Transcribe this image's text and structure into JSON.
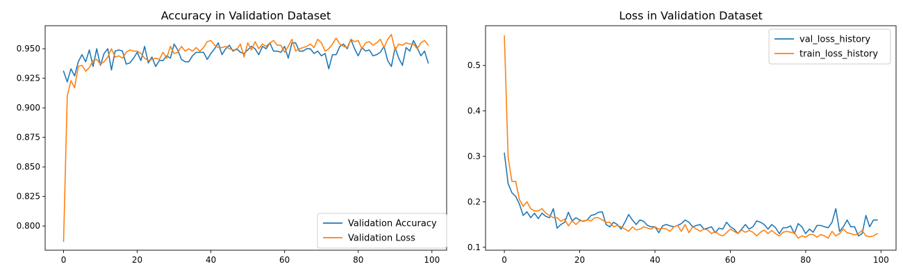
{
  "chart_data": [
    {
      "type": "line",
      "title": "Accuracy in Validation Dataset",
      "xlabel": "",
      "ylabel": "",
      "xlim": [
        -5,
        104
      ],
      "ylim": [
        0.7795,
        0.9695
      ],
      "xticks": [
        0,
        20,
        40,
        60,
        80,
        100
      ],
      "yticks": [
        0.8,
        0.825,
        0.85,
        0.875,
        0.9,
        0.925,
        0.95
      ],
      "ytick_labels": [
        "0.800",
        "0.825",
        "0.850",
        "0.875",
        "0.900",
        "0.925",
        "0.950"
      ],
      "legend_position": "lower-right",
      "grid": false,
      "x": [
        0,
        1,
        2,
        3,
        4,
        5,
        6,
        7,
        8,
        9,
        10,
        11,
        12,
        13,
        14,
        15,
        16,
        17,
        18,
        19,
        20,
        21,
        22,
        23,
        24,
        25,
        26,
        27,
        28,
        29,
        30,
        31,
        32,
        33,
        34,
        35,
        36,
        37,
        38,
        39,
        40,
        41,
        42,
        43,
        44,
        45,
        46,
        47,
        48,
        49,
        50,
        51,
        52,
        53,
        54,
        55,
        56,
        57,
        58,
        59,
        60,
        61,
        62,
        63,
        64,
        65,
        66,
        67,
        68,
        69,
        70,
        71,
        72,
        73,
        74,
        75,
        76,
        77,
        78,
        79,
        80,
        81,
        82,
        83,
        84,
        85,
        86,
        87,
        88,
        89,
        90,
        91,
        92,
        93,
        94,
        95,
        96,
        97,
        98,
        99
      ],
      "series": [
        {
          "name": "Validation Accuracy",
          "color": "#1f77b4",
          "values": [
            0.931,
            0.922,
            0.933,
            0.927,
            0.939,
            0.945,
            0.939,
            0.949,
            0.935,
            0.95,
            0.936,
            0.946,
            0.95,
            0.932,
            0.948,
            0.949,
            0.948,
            0.937,
            0.938,
            0.942,
            0.947,
            0.94,
            0.952,
            0.938,
            0.943,
            0.935,
            0.94,
            0.94,
            0.944,
            0.942,
            0.954,
            0.949,
            0.941,
            0.939,
            0.939,
            0.944,
            0.947,
            0.947,
            0.947,
            0.941,
            0.946,
            0.95,
            0.955,
            0.945,
            0.95,
            0.953,
            0.948,
            0.95,
            0.947,
            0.946,
            0.949,
            0.952,
            0.95,
            0.945,
            0.952,
            0.95,
            0.955,
            0.948,
            0.948,
            0.947,
            0.952,
            0.942,
            0.955,
            0.955,
            0.948,
            0.948,
            0.95,
            0.95,
            0.946,
            0.948,
            0.944,
            0.946,
            0.933,
            0.945,
            0.945,
            0.952,
            0.954,
            0.95,
            0.958,
            0.95,
            0.944,
            0.951,
            0.948,
            0.949,
            0.944,
            0.945,
            0.947,
            0.952,
            0.94,
            0.935,
            0.951,
            0.942,
            0.936,
            0.951,
            0.948,
            0.957,
            0.951,
            0.944,
            0.948,
            0.938
          ]
        },
        {
          "name": "Validation Loss",
          "color": "#ff7f0e",
          "values": [
            0.787,
            0.91,
            0.923,
            0.917,
            0.935,
            0.936,
            0.931,
            0.934,
            0.94,
            0.941,
            0.937,
            0.939,
            0.943,
            0.95,
            0.943,
            0.944,
            0.942,
            0.947,
            0.949,
            0.948,
            0.948,
            0.946,
            0.942,
            0.94,
            0.941,
            0.942,
            0.941,
            0.947,
            0.942,
            0.952,
            0.946,
            0.947,
            0.952,
            0.948,
            0.95,
            0.948,
            0.951,
            0.948,
            0.951,
            0.956,
            0.957,
            0.953,
            0.951,
            0.951,
            0.952,
            0.95,
            0.949,
            0.949,
            0.954,
            0.943,
            0.955,
            0.949,
            0.956,
            0.95,
            0.954,
            0.952,
            0.955,
            0.957,
            0.953,
            0.953,
            0.947,
            0.952,
            0.958,
            0.948,
            0.95,
            0.951,
            0.952,
            0.954,
            0.951,
            0.958,
            0.955,
            0.948,
            0.95,
            0.954,
            0.959,
            0.954,
            0.952,
            0.951,
            0.958,
            0.956,
            0.957,
            0.95,
            0.955,
            0.956,
            0.953,
            0.955,
            0.958,
            0.951,
            0.958,
            0.962,
            0.949,
            0.954,
            0.953,
            0.955,
            0.954,
            0.954,
            0.95,
            0.955,
            0.957,
            0.953
          ]
        }
      ]
    },
    {
      "type": "line",
      "title": "Loss in Validation Dataset",
      "xlabel": "",
      "ylabel": "",
      "xlim": [
        -5,
        104
      ],
      "ylim": [
        0.0935,
        0.5875
      ],
      "xticks": [
        0,
        20,
        40,
        60,
        80,
        100
      ],
      "yticks": [
        0.1,
        0.2,
        0.3,
        0.4,
        0.5
      ],
      "ytick_labels": [
        "0.1",
        "0.2",
        "0.3",
        "0.4",
        "0.5"
      ],
      "legend_position": "upper-right",
      "grid": false,
      "x": [
        0,
        1,
        2,
        3,
        4,
        5,
        6,
        7,
        8,
        9,
        10,
        11,
        12,
        13,
        14,
        15,
        16,
        17,
        18,
        19,
        20,
        21,
        22,
        23,
        24,
        25,
        26,
        27,
        28,
        29,
        30,
        31,
        32,
        33,
        34,
        35,
        36,
        37,
        38,
        39,
        40,
        41,
        42,
        43,
        44,
        45,
        46,
        47,
        48,
        49,
        50,
        51,
        52,
        53,
        54,
        55,
        56,
        57,
        58,
        59,
        60,
        61,
        62,
        63,
        64,
        65,
        66,
        67,
        68,
        69,
        70,
        71,
        72,
        73,
        74,
        75,
        76,
        77,
        78,
        79,
        80,
        81,
        82,
        83,
        84,
        85,
        86,
        87,
        88,
        89,
        90,
        91,
        92,
        93,
        94,
        95,
        96,
        97,
        98,
        99
      ],
      "series": [
        {
          "name": "val_loss_history",
          "color": "#1f77b4",
          "values": [
            0.307,
            0.24,
            0.22,
            0.212,
            0.195,
            0.17,
            0.178,
            0.165,
            0.175,
            0.163,
            0.175,
            0.168,
            0.165,
            0.185,
            0.142,
            0.15,
            0.155,
            0.177,
            0.158,
            0.165,
            0.16,
            0.157,
            0.16,
            0.17,
            0.172,
            0.177,
            0.178,
            0.15,
            0.145,
            0.155,
            0.15,
            0.14,
            0.155,
            0.172,
            0.16,
            0.15,
            0.16,
            0.157,
            0.148,
            0.145,
            0.145,
            0.132,
            0.147,
            0.15,
            0.147,
            0.145,
            0.148,
            0.152,
            0.16,
            0.155,
            0.145,
            0.148,
            0.15,
            0.14,
            0.142,
            0.145,
            0.132,
            0.142,
            0.14,
            0.155,
            0.145,
            0.14,
            0.13,
            0.14,
            0.15,
            0.14,
            0.145,
            0.158,
            0.155,
            0.15,
            0.14,
            0.15,
            0.143,
            0.13,
            0.143,
            0.143,
            0.147,
            0.13,
            0.152,
            0.145,
            0.13,
            0.14,
            0.133,
            0.148,
            0.148,
            0.145,
            0.143,
            0.155,
            0.185,
            0.135,
            0.145,
            0.16,
            0.145,
            0.145,
            0.125,
            0.13,
            0.17,
            0.145,
            0.16,
            0.16
          ]
        },
        {
          "name": "train_loss_history",
          "color": "#ff7f0e",
          "values": [
            0.565,
            0.298,
            0.245,
            0.245,
            0.205,
            0.19,
            0.2,
            0.185,
            0.18,
            0.18,
            0.185,
            0.175,
            0.17,
            0.165,
            0.165,
            0.157,
            0.162,
            0.147,
            0.158,
            0.15,
            0.158,
            0.158,
            0.16,
            0.158,
            0.165,
            0.165,
            0.16,
            0.155,
            0.155,
            0.145,
            0.148,
            0.145,
            0.14,
            0.135,
            0.145,
            0.138,
            0.14,
            0.145,
            0.142,
            0.14,
            0.145,
            0.14,
            0.142,
            0.14,
            0.135,
            0.145,
            0.148,
            0.135,
            0.15,
            0.132,
            0.145,
            0.14,
            0.135,
            0.14,
            0.138,
            0.13,
            0.135,
            0.128,
            0.125,
            0.132,
            0.14,
            0.135,
            0.13,
            0.138,
            0.133,
            0.137,
            0.133,
            0.125,
            0.133,
            0.138,
            0.13,
            0.137,
            0.13,
            0.125,
            0.133,
            0.135,
            0.133,
            0.132,
            0.12,
            0.125,
            0.122,
            0.128,
            0.128,
            0.122,
            0.128,
            0.125,
            0.12,
            0.135,
            0.125,
            0.13,
            0.14,
            0.132,
            0.13,
            0.127,
            0.13,
            0.137,
            0.125,
            0.123,
            0.125,
            0.13
          ]
        }
      ]
    }
  ]
}
